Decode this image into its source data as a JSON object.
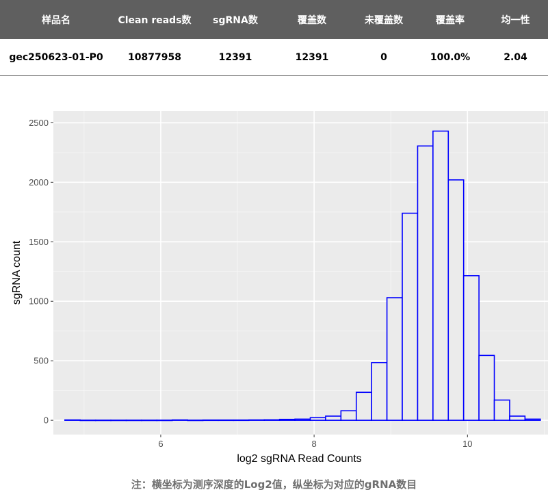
{
  "table": {
    "headers": [
      "样品名",
      "Clean reads数",
      "sgRNA数",
      "覆盖数",
      "未覆盖数",
      "覆盖率",
      "均一性"
    ],
    "rows": [
      [
        "gec250623-01-P0",
        "10877958",
        "12391",
        "12391",
        "0",
        "100.0%",
        "2.04"
      ]
    ]
  },
  "chart_data": {
    "type": "bar",
    "xlabel": "log2 sgRNA Read Counts",
    "ylabel": "sgRNA count",
    "xlim": [
      4.6,
      11.05
    ],
    "ylim": [
      -120,
      2600
    ],
    "x_ticks": [
      6,
      8,
      10
    ],
    "x_tick_labels": [
      "6",
      "8",
      "10"
    ],
    "y_ticks": [
      0,
      500,
      1000,
      1500,
      2000,
      2500
    ],
    "y_tick_labels": [
      "0",
      "500",
      "1000",
      "1500",
      "2000",
      "2500"
    ],
    "grid": true,
    "bin_width": 0.2,
    "bar_color": "#0000ff",
    "panel_color": "#ebebeb",
    "bins_start": [
      4.75,
      4.95,
      5.15,
      5.35,
      5.55,
      5.75,
      5.95,
      6.15,
      6.35,
      6.55,
      6.75,
      6.95,
      7.15,
      7.35,
      7.55,
      7.75,
      7.95,
      8.15,
      8.35,
      8.55,
      8.75,
      8.95,
      9.15,
      9.35,
      9.55,
      9.75,
      9.95,
      10.15,
      10.35,
      10.55,
      10.75
    ],
    "values": [
      3,
      1,
      1,
      1,
      1,
      1,
      1,
      3,
      1,
      2,
      2,
      2,
      3,
      4,
      8,
      10,
      22,
      35,
      80,
      235,
      485,
      1030,
      1740,
      2305,
      2430,
      2020,
      1215,
      545,
      170,
      35,
      10
    ]
  },
  "note": "注：横坐标为测序深度的Log2值，纵坐标为对应的gRNA数目"
}
